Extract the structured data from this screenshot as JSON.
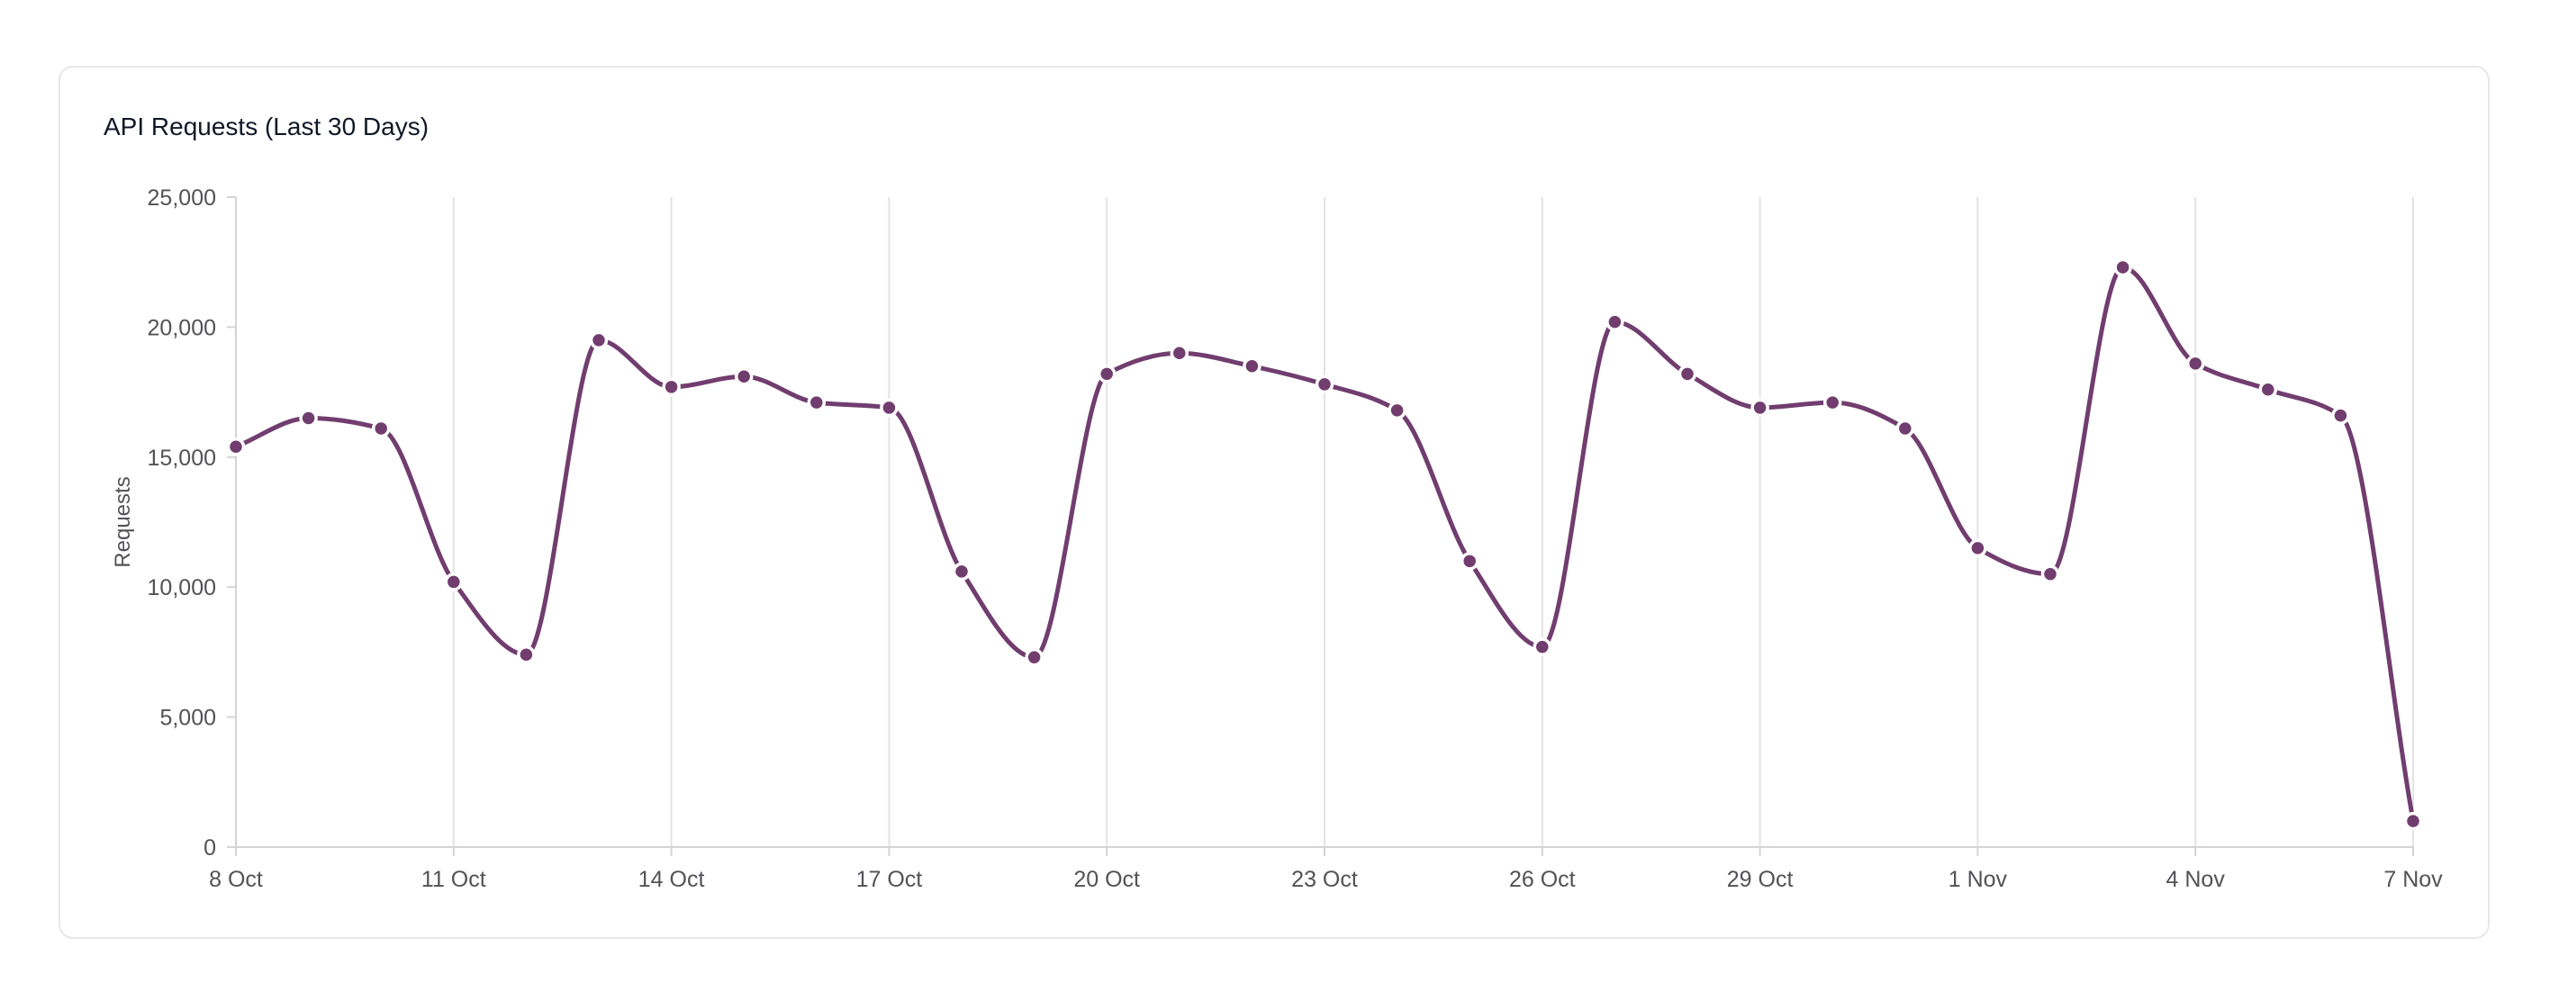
{
  "card": {
    "title": "API Requests (Last 30 Days)"
  },
  "chart_data": {
    "type": "line",
    "title": "API Requests (Last 30 Days)",
    "xlabel": "",
    "ylabel": "Requests",
    "ylim": [
      0,
      25000
    ],
    "yticks": [
      0,
      5000,
      10000,
      15000,
      20000,
      25000
    ],
    "ytick_labels": [
      "0",
      "5,000",
      "10,000",
      "15,000",
      "20,000",
      "25,000"
    ],
    "x": [
      "8 Oct",
      "9 Oct",
      "10 Oct",
      "11 Oct",
      "12 Oct",
      "13 Oct",
      "14 Oct",
      "15 Oct",
      "16 Oct",
      "17 Oct",
      "18 Oct",
      "19 Oct",
      "20 Oct",
      "21 Oct",
      "22 Oct",
      "23 Oct",
      "24 Oct",
      "25 Oct",
      "26 Oct",
      "27 Oct",
      "28 Oct",
      "29 Oct",
      "30 Oct",
      "31 Oct",
      "1 Nov",
      "2 Nov",
      "3 Nov",
      "4 Nov",
      "5 Nov",
      "6 Nov",
      "7 Nov"
    ],
    "xtick_labels": [
      "8 Oct",
      "11 Oct",
      "14 Oct",
      "17 Oct",
      "20 Oct",
      "23 Oct",
      "26 Oct",
      "29 Oct",
      "1 Nov",
      "4 Nov",
      "7 Nov"
    ],
    "xtick_every": 3,
    "series": [
      {
        "name": "",
        "values": [
          15400,
          16500,
          16100,
          10200,
          7400,
          19500,
          17700,
          18100,
          17100,
          16900,
          10600,
          7300,
          18200,
          19000,
          18500,
          17800,
          16800,
          11000,
          7700,
          20200,
          18200,
          16900,
          17100,
          16100,
          11500,
          10500,
          22300,
          18600,
          17600,
          16600,
          1000
        ]
      }
    ],
    "line_color": "#713d6f",
    "grid": "vertical",
    "legend": "none"
  }
}
